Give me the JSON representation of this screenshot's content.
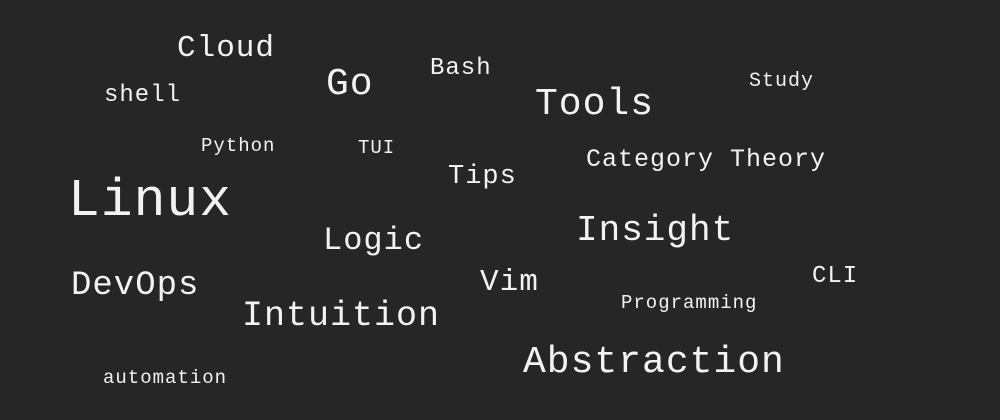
{
  "background_color": "#262626",
  "text_color": "#f2f2f2",
  "words": {
    "cloud": "Cloud",
    "go": "Go",
    "bash": "Bash",
    "study": "Study",
    "shell": "shell",
    "tools": "Tools",
    "python": "Python",
    "tui": "TUI",
    "category_theory": "Category Theory",
    "tips": "Tips",
    "linux": "Linux",
    "insight": "Insight",
    "logic": "Logic",
    "cli": "CLI",
    "devops": "DevOps",
    "vim": "Vim",
    "programming": "Programming",
    "intuition": "Intuition",
    "abstraction": "Abstraction",
    "automation": "automation"
  }
}
